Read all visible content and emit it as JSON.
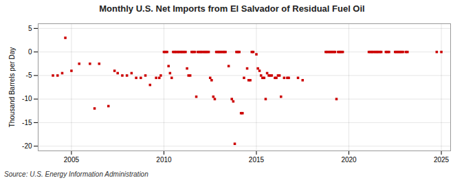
{
  "chart_data": {
    "type": "scatter",
    "title": "Monthly U.S. Net Imports from El Salvador of Residual Fuel Oil",
    "ylabel": "Thousand Barrels per Day",
    "source": "Source: U.S. Energy Information Administration",
    "color": "#cc0000",
    "marker": "square",
    "grid": true,
    "xlim": [
      2003.2,
      2025.5
    ],
    "ylim": [
      -21,
      6
    ],
    "xticks": [
      2005,
      2010,
      2015,
      2020,
      2025
    ],
    "yticks": [
      5,
      0,
      -5,
      -10,
      -15,
      -20
    ],
    "x": [
      2004.0,
      2004.25,
      2004.5,
      2004.67,
      2005.0,
      2005.42,
      2006.0,
      2006.25,
      2006.5,
      2007.0,
      2007.33,
      2007.5,
      2007.75,
      2008.0,
      2008.25,
      2008.5,
      2008.75,
      2009.0,
      2009.25,
      2009.58,
      2009.75,
      2009.83,
      2010.0,
      2010.08,
      2010.17,
      2010.25,
      2010.33,
      2010.42,
      2010.5,
      2010.58,
      2010.67,
      2010.75,
      2010.83,
      2010.92,
      2011.0,
      2011.08,
      2011.17,
      2011.25,
      2011.33,
      2011.42,
      2011.5,
      2011.58,
      2011.67,
      2011.75,
      2011.83,
      2011.92,
      2012.0,
      2012.08,
      2012.17,
      2012.25,
      2012.33,
      2012.42,
      2012.5,
      2012.58,
      2012.67,
      2012.75,
      2012.83,
      2012.92,
      2013.0,
      2013.08,
      2013.17,
      2013.25,
      2013.33,
      2013.5,
      2013.67,
      2013.75,
      2013.83,
      2013.92,
      2014.0,
      2014.08,
      2014.17,
      2014.25,
      2014.33,
      2014.5,
      2014.58,
      2014.67,
      2014.75,
      2014.83,
      2015.0,
      2015.08,
      2015.17,
      2015.25,
      2015.33,
      2015.42,
      2015.5,
      2015.58,
      2015.67,
      2015.75,
      2015.83,
      2016.0,
      2016.08,
      2016.17,
      2016.25,
      2016.33,
      2016.5,
      2016.67,
      2016.75,
      2017.25,
      2017.5,
      2018.75,
      2018.83,
      2018.92,
      2019.0,
      2019.08,
      2019.17,
      2019.25,
      2019.33,
      2019.42,
      2019.5,
      2019.58,
      2019.67,
      2021.08,
      2021.17,
      2021.25,
      2021.33,
      2021.42,
      2021.5,
      2021.58,
      2021.67,
      2021.75,
      2022.0,
      2022.08,
      2022.17,
      2022.5,
      2022.58,
      2022.67,
      2022.75,
      2022.83,
      2022.92,
      2023.08,
      2023.17,
      2024.75,
      2025.0
    ],
    "values": [
      -5.0,
      -5.0,
      -4.5,
      3.0,
      -4.0,
      -2.5,
      -2.5,
      -12.0,
      -2.5,
      -11.5,
      -4.0,
      -4.5,
      -5.0,
      -5.0,
      -4.5,
      -5.5,
      -5.5,
      -5.0,
      -7.0,
      -5.5,
      -5.5,
      -5.0,
      0.0,
      0.0,
      0.0,
      -3.0,
      -4.5,
      -5.5,
      0.0,
      0.0,
      0.0,
      0.0,
      0.0,
      0.0,
      0.0,
      0.0,
      0.0,
      -3.5,
      -5.0,
      -5.0,
      0.0,
      0.0,
      0.0,
      -9.5,
      0.0,
      0.0,
      0.0,
      0.0,
      0.0,
      0.0,
      0.0,
      0.0,
      -5.5,
      -6.0,
      -9.5,
      -10.0,
      0.0,
      0.0,
      0.0,
      0.0,
      0.0,
      0.0,
      0.0,
      -3.0,
      -10.0,
      -10.5,
      -19.5,
      0.0,
      0.0,
      0.0,
      -13.0,
      -13.0,
      -5.5,
      -3.5,
      -6.0,
      -6.0,
      0.0,
      0.0,
      -0.5,
      -3.5,
      -4.0,
      -5.0,
      -5.5,
      -5.5,
      -10.0,
      -4.5,
      -5.0,
      -5.0,
      -5.0,
      -5.5,
      -5.5,
      -5.0,
      -5.0,
      -9.5,
      -5.5,
      -5.5,
      -5.5,
      -5.5,
      -6.0,
      0.0,
      0.0,
      0.0,
      0.0,
      0.0,
      0.0,
      0.0,
      -10.0,
      0.0,
      0.0,
      0.0,
      0.0,
      0.0,
      0.0,
      0.0,
      0.0,
      0.0,
      0.0,
      0.0,
      0.0,
      0.0,
      0.0,
      0.0,
      0.0,
      0.0,
      0.0,
      0.0,
      0.0,
      0.0,
      0.0,
      0.0,
      0.0,
      0.0,
      0.0
    ]
  }
}
